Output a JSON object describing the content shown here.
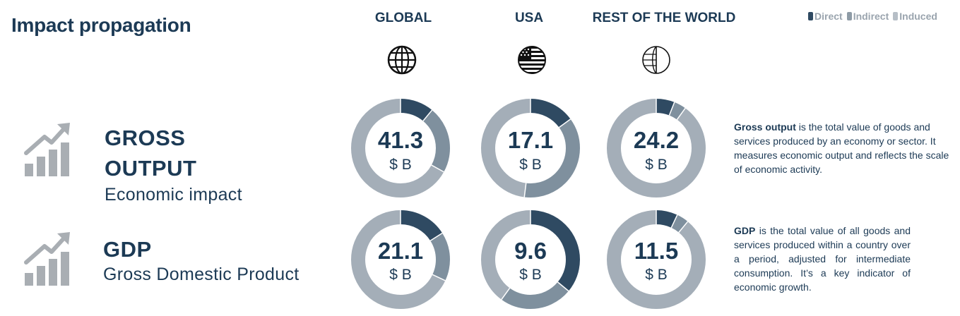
{
  "title": "Impact propagation",
  "columns": [
    {
      "label": "GLOBAL",
      "icon": "globe-icon"
    },
    {
      "label": "USA",
      "icon": "us-flag-icon"
    },
    {
      "label": "REST OF THE WORLD",
      "icon": "world-half-icon"
    }
  ],
  "legend": [
    {
      "label": "Direct",
      "color": "#2f4a62"
    },
    {
      "label": "Indirect",
      "color": "#7f909e"
    },
    {
      "label": "Induced",
      "color": "#a4aeb8"
    }
  ],
  "metrics": [
    {
      "title_line1": "GROSS",
      "title_line2": "OUTPUT",
      "subtitle": "Economic impact",
      "icon": "growth-chart-icon",
      "desc_term": "Gross output",
      "desc_rest": " is the total value of goods and services produced by an economy or sector. It measures economic output and reflects the scale of economic activity."
    },
    {
      "title_line1": "GDP",
      "subtitle": "Gross Domestic Product",
      "icon": "growth-chart-icon",
      "desc_term": "GDP",
      "desc_rest": " is the total value of all goods and services produced within a country over a period, adjusted for intermediate consumption. It’s a key indicator of economic growth."
    }
  ],
  "chart_data": [
    {
      "type": "pie",
      "metric": "GROSS OUTPUT",
      "region": "GLOBAL",
      "total": "41.3",
      "unit": "$ B",
      "series": [
        {
          "name": "Direct",
          "share": 0.11
        },
        {
          "name": "Indirect",
          "share": 0.22
        },
        {
          "name": "Induced",
          "share": 0.67
        }
      ]
    },
    {
      "type": "pie",
      "metric": "GROSS OUTPUT",
      "region": "USA",
      "total": "17.1",
      "unit": "$ B",
      "series": [
        {
          "name": "Direct",
          "share": 0.15
        },
        {
          "name": "Indirect",
          "share": 0.37
        },
        {
          "name": "Induced",
          "share": 0.48
        }
      ]
    },
    {
      "type": "pie",
      "metric": "GROSS OUTPUT",
      "region": "REST OF THE WORLD",
      "total": "24.2",
      "unit": "$ B",
      "series": [
        {
          "name": "Direct",
          "share": 0.06
        },
        {
          "name": "Indirect",
          "share": 0.04
        },
        {
          "name": "Induced",
          "share": 0.9
        }
      ]
    },
    {
      "type": "pie",
      "metric": "GDP",
      "region": "GLOBAL",
      "total": "21.1",
      "unit": "$ B",
      "series": [
        {
          "name": "Direct",
          "share": 0.16
        },
        {
          "name": "Indirect",
          "share": 0.16
        },
        {
          "name": "Induced",
          "share": 0.68
        }
      ]
    },
    {
      "type": "pie",
      "metric": "GDP",
      "region": "USA",
      "total": "9.6",
      "unit": "$ B",
      "series": [
        {
          "name": "Direct",
          "share": 0.36
        },
        {
          "name": "Indirect",
          "share": 0.24
        },
        {
          "name": "Induced",
          "share": 0.4
        }
      ]
    },
    {
      "type": "pie",
      "metric": "GDP",
      "region": "REST OF THE WORLD",
      "total": "11.5",
      "unit": "$ B",
      "series": [
        {
          "name": "Direct",
          "share": 0.07
        },
        {
          "name": "Indirect",
          "share": 0.04
        },
        {
          "name": "Induced",
          "share": 0.89
        }
      ]
    }
  ]
}
